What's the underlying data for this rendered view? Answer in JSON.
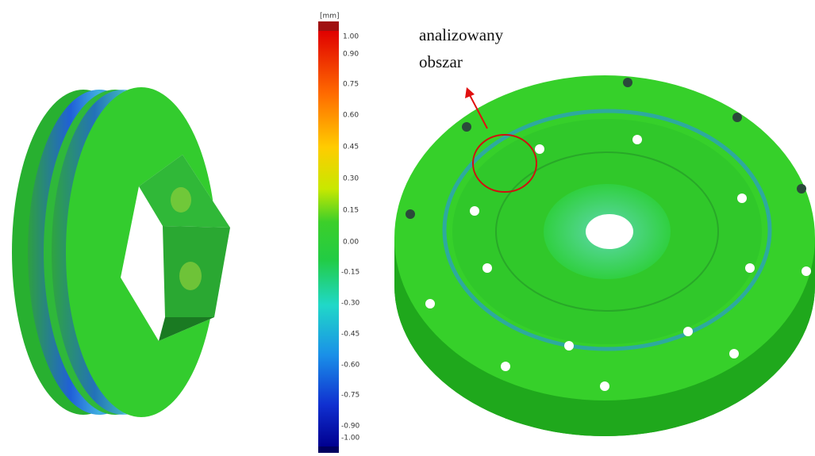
{
  "colorbar": {
    "unit": "[mm]",
    "labels": [
      "1.00",
      "0.90",
      "0.75",
      "0.60",
      "0.45",
      "0.30",
      "0.15",
      "0.00",
      "-0.15",
      "-0.30",
      "-0.45",
      "-0.60",
      "-0.75",
      "-0.90",
      "-1.00"
    ]
  },
  "annotation": {
    "lines": [
      "analizowany",
      "obszar"
    ]
  }
}
